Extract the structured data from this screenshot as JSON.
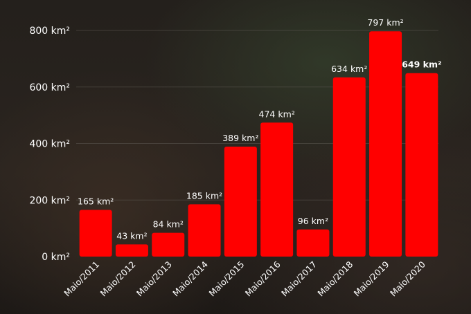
{
  "chart_data": {
    "type": "bar",
    "categories": [
      "Maio/2011",
      "Maio/2012",
      "Maio/2013",
      "Maio/2014",
      "Maio/2015",
      "Maio/2016",
      "Maio/2017",
      "Maio/2018",
      "Maio/2019",
      "Maio/2020"
    ],
    "values": [
      165,
      43,
      84,
      185,
      389,
      474,
      96,
      634,
      797,
      649
    ],
    "data_labels": [
      "165 km²",
      "43 km²",
      "84 km²",
      "185 km²",
      "389 km²",
      "474 km²",
      "96 km²",
      "634 km²",
      "797 km²",
      "649 km²"
    ],
    "highlight_index": 9,
    "ylim": [
      0,
      800
    ],
    "yticks": [
      0,
      200,
      400,
      600,
      800
    ],
    "ytick_labels": [
      "0 km²",
      "200 km²",
      "400 km²",
      "600 km²",
      "800 km²"
    ],
    "grid": true,
    "bar_color": "#ff0000"
  }
}
